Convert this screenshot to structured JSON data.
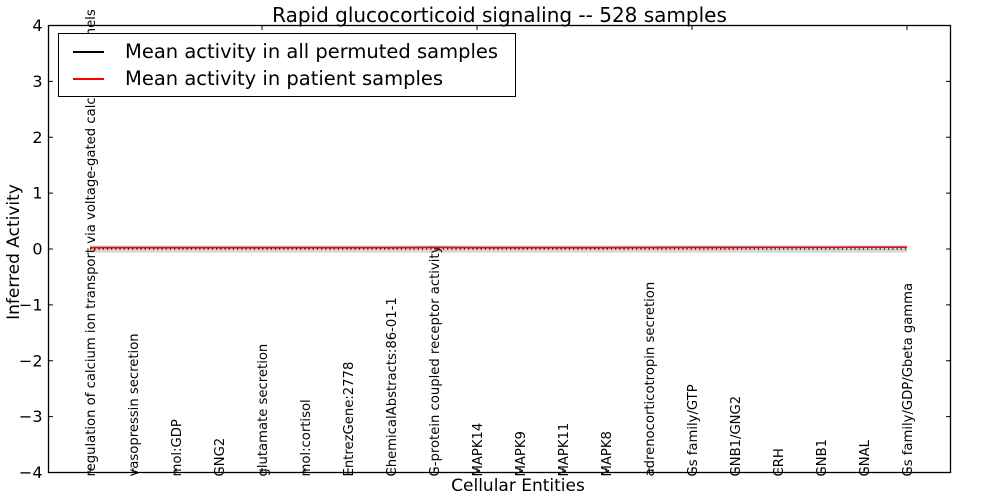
{
  "chart_data": {
    "type": "line",
    "title": "Rapid glucocorticoid signaling -- 528 samples",
    "xlabel": "Cellular Entities",
    "ylabel": "Inferred Activity",
    "ylim": [
      -4,
      4
    ],
    "yticks": [
      -4,
      -3,
      -2,
      -1,
      0,
      1,
      2,
      3,
      4
    ],
    "xticks_top_values": [
      5,
      10,
      15,
      20
    ],
    "grid": false,
    "legend_position": "upper-left",
    "categories": [
      "regulation of calcium ion transport via voltage-gated calcium channels",
      "vasopressin secretion",
      "mol:GDP",
      "GNG2",
      "glutamate secretion",
      "mol:cortisol",
      "EntrezGene:2778",
      "ChemicalAbstracts:86-01-1",
      "G-protein coupled receptor activity",
      "MAPK14",
      "MAPK9",
      "MAPK11",
      "MAPK8",
      "adrenocorticotropin secretion",
      "Gs family/GTP",
      "GNB1/GNG2",
      "CRH",
      "GNB1",
      "GNAL",
      "Gs family/GDP/Gbeta gamma"
    ],
    "series": [
      {
        "name": "Mean activity in all permuted samples",
        "color": "#000000",
        "style": "dotted",
        "values": [
          0.0,
          0.0,
          0.0,
          0.0,
          0.0,
          0.0,
          0.0,
          0.0,
          0.0,
          0.0,
          0.0,
          0.0,
          0.0,
          0.0,
          0.0,
          0.0,
          0.0,
          0.0,
          0.0,
          0.0
        ]
      },
      {
        "name": "Mean activity in patient samples",
        "color": "#ff0000",
        "style": "solid",
        "values": [
          0.025,
          0.025,
          0.025,
          0.025,
          0.025,
          0.025,
          0.025,
          0.025,
          0.028,
          0.025,
          0.025,
          0.025,
          0.025,
          0.027,
          0.028,
          0.028,
          0.03,
          0.03,
          0.032,
          0.032
        ]
      }
    ],
    "band": {
      "center": 0,
      "halfwidth": 0.065,
      "color": "#d6d6d6"
    }
  }
}
